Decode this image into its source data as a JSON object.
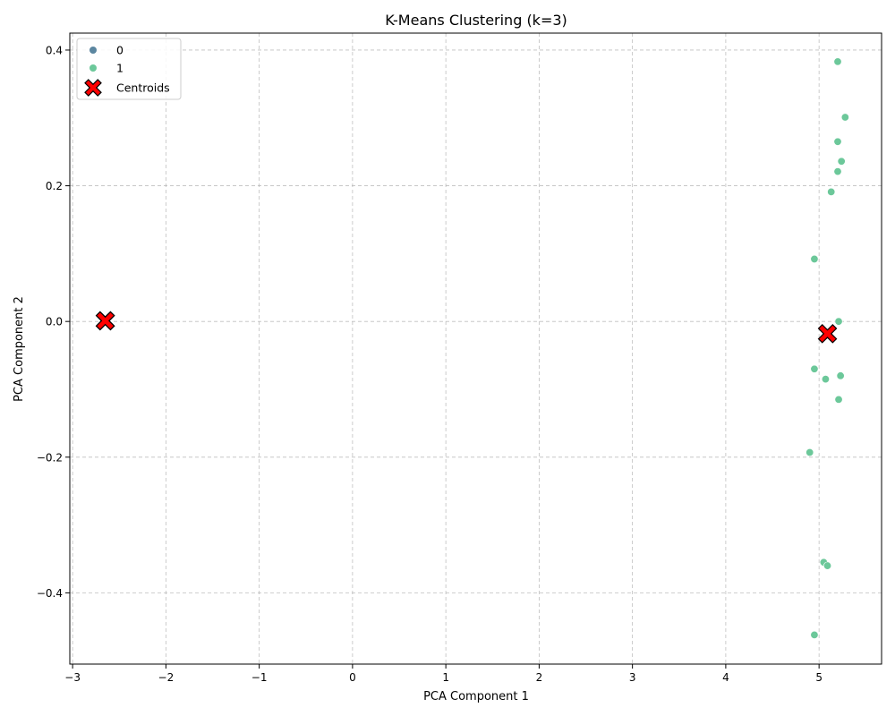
{
  "chart_data": {
    "type": "scatter",
    "title": "K-Means Clustering (k=3)",
    "xlabel": "PCA Component 1",
    "ylabel": "PCA Component 2",
    "xlim": [
      -3.03,
      5.67
    ],
    "ylim": [
      -0.505,
      0.425
    ],
    "xticks": [
      -3,
      -2,
      -1,
      0,
      1,
      2,
      3,
      4,
      5
    ],
    "yticks": [
      -0.4,
      -0.2,
      0.0,
      0.2,
      0.4
    ],
    "xtick_labels": [
      "−3",
      "−2",
      "−1",
      "0",
      "1",
      "2",
      "3",
      "4",
      "5"
    ],
    "ytick_labels": [
      "−0.4",
      "−0.2",
      "0.0",
      "0.2",
      "0.4"
    ],
    "grid": true,
    "legend_position": "top-left",
    "series": [
      {
        "name": "0",
        "color": "#5b86a0",
        "x": [],
        "y": []
      },
      {
        "name": "1",
        "color": "#6cc89a",
        "x": [
          5.2,
          5.28,
          5.2,
          5.24,
          5.2,
          5.13,
          4.95,
          5.21,
          4.95,
          5.23,
          5.07,
          5.21,
          4.9,
          5.05,
          5.09,
          4.95
        ],
        "y": [
          0.383,
          0.301,
          0.265,
          0.236,
          0.221,
          0.191,
          0.092,
          0.0,
          -0.07,
          -0.08,
          -0.085,
          -0.115,
          -0.193,
          -0.355,
          -0.36,
          -0.462
        ]
      }
    ],
    "centroids": {
      "name": "Centroids",
      "color": "#ff0000",
      "marker": "X",
      "x": [
        -2.65,
        5.09,
        -2.65
      ],
      "y": [
        0.001,
        -0.018,
        0.001
      ]
    }
  }
}
